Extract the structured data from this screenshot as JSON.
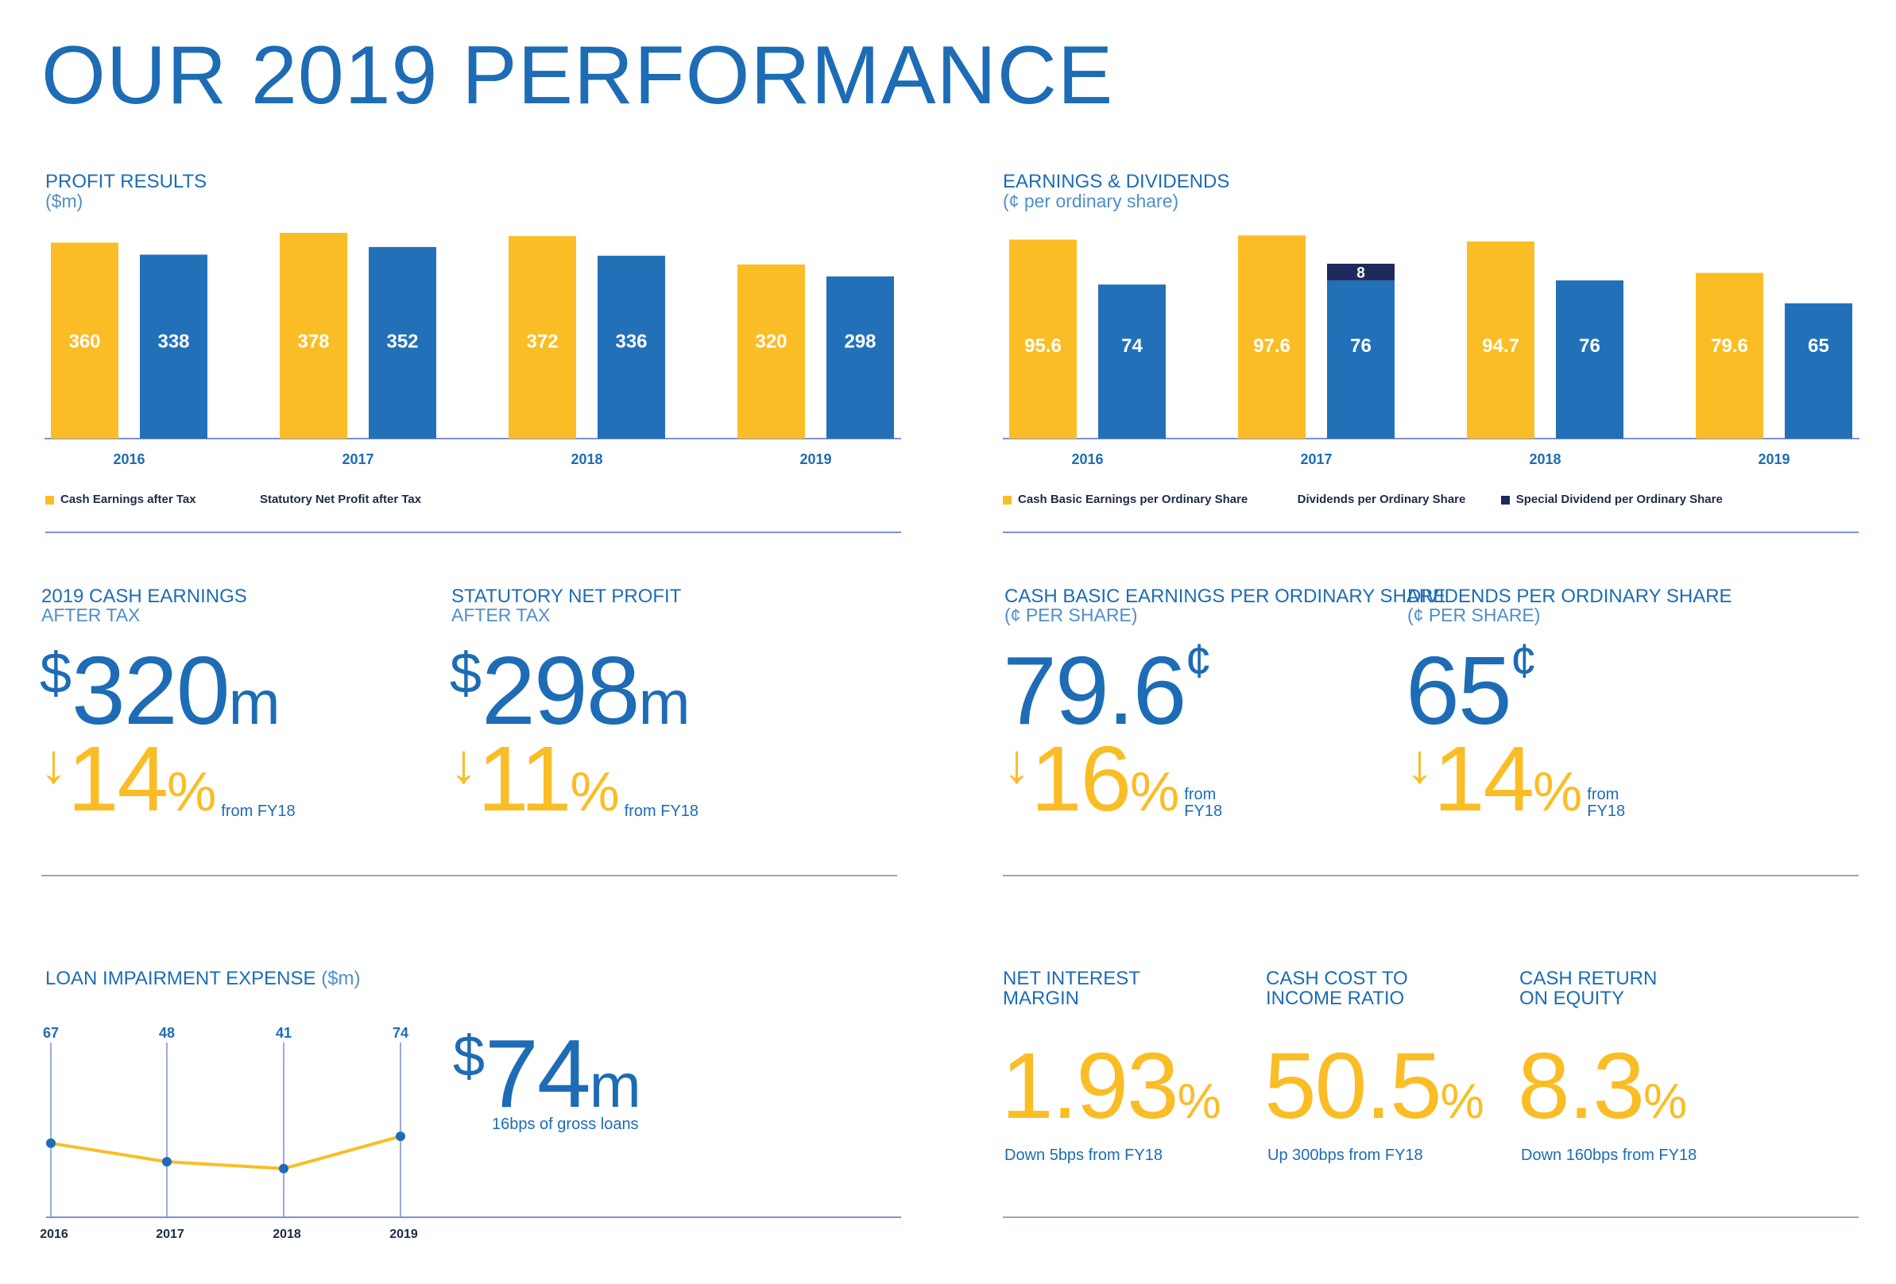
{
  "page": {
    "title": "OUR 2019 PERFORMANCE"
  },
  "colors": {
    "yellow": "#fbbd25",
    "blue": "#2271b8",
    "navy": "#1c2a5c",
    "text_blue": "#1d6cb5",
    "axis": "#7f8fd6"
  },
  "profit_results": {
    "title": "PROFIT RESULTS",
    "unit": "($m)",
    "legend": [
      "Cash Earnings after Tax",
      "Statutory Net Profit after Tax"
    ]
  },
  "earnings_dividends": {
    "title": "EARNINGS & DIVIDENDS",
    "unit": "(¢ per ordinary share)",
    "legend": [
      "Cash Basic Earnings per Ordinary Share",
      "Dividends per Ordinary Share",
      "Special Dividend per Ordinary Share"
    ]
  },
  "kpi": {
    "cash_earnings": {
      "title": "2019 CASH EARNINGS",
      "sub": "AFTER TAX",
      "currency": "$",
      "value": "320",
      "suffix": "m",
      "arrow": "↓",
      "change": "14",
      "pct": "%",
      "from": "from FY18"
    },
    "statutory": {
      "title": "STATUTORY NET PROFIT",
      "sub": "AFTER TAX",
      "currency": "$",
      "value": "298",
      "suffix": "m",
      "arrow": "↓",
      "change": "11",
      "pct": "%",
      "from": "from FY18"
    },
    "eps": {
      "title": "CASH BASIC EARNINGS PER ORDINARY SHARE",
      "sub": "(¢ PER SHARE)",
      "value": "79.6",
      "unit": "¢",
      "arrow": "↓",
      "change": "16",
      "pct": "%",
      "from_1": "from",
      "from_2": "FY18"
    },
    "dps": {
      "title": "DIVIDENDS PER ORDINARY SHARE",
      "sub": "(¢ PER SHARE)",
      "value": "65",
      "unit": "¢",
      "arrow": "↓",
      "change": "14",
      "pct": "%",
      "from_1": "from",
      "from_2": "FY18"
    }
  },
  "loan": {
    "title": "LOAN IMPAIRMENT EXPENSE",
    "unit": "($m)",
    "currency": "$",
    "value": "74",
    "suffix": "m",
    "note": "16bps of gross loans"
  },
  "ratios": [
    {
      "title_1": "NET INTEREST",
      "title_2": "MARGIN",
      "value": "1.93",
      "pct": "%",
      "note": "Down 5bps from FY18"
    },
    {
      "title_1": "CASH COST TO",
      "title_2": "INCOME RATIO",
      "value": "50.5",
      "pct": "%",
      "note": "Up 300bps from FY18"
    },
    {
      "title_1": "CASH RETURN",
      "title_2": "ON EQUITY",
      "value": "8.3",
      "pct": "%",
      "note": "Down 160bps from FY18"
    }
  ],
  "chart_data": [
    {
      "type": "bar",
      "title": "PROFIT RESULTS",
      "ylabel": "($m)",
      "categories": [
        "2016",
        "2017",
        "2018",
        "2019"
      ],
      "series": [
        {
          "name": "Cash Earnings after Tax",
          "color": "#fbbd25",
          "values": [
            360,
            378,
            372,
            320
          ]
        },
        {
          "name": "Statutory Net Profit after Tax",
          "color": "#2271b8",
          "values": [
            338,
            352,
            336,
            298
          ]
        }
      ],
      "ylim": [
        0,
        400
      ],
      "grid": false,
      "legend": "bottom-left"
    },
    {
      "type": "bar",
      "title": "EARNINGS & DIVIDENDS",
      "ylabel": "(¢ per ordinary share)",
      "categories": [
        "2016",
        "2017",
        "2018",
        "2019"
      ],
      "series": [
        {
          "name": "Cash Basic Earnings per Ordinary Share",
          "color": "#fbbd25",
          "values": [
            95.6,
            97.6,
            94.7,
            79.6
          ]
        },
        {
          "name": "Dividends per Ordinary Share",
          "color": "#2271b8",
          "values": [
            74,
            76,
            76,
            65
          ]
        },
        {
          "name": "Special Dividend per Ordinary Share",
          "color": "#1c2a5c",
          "values": [
            0,
            8,
            0,
            0
          ],
          "stacked_on": "Dividends per Ordinary Share"
        }
      ],
      "ylim": [
        0,
        100
      ],
      "grid": false,
      "legend": "bottom-left"
    },
    {
      "type": "line",
      "title": "LOAN IMPAIRMENT EXPENSE",
      "ylabel": "($m)",
      "x": [
        "2016",
        "2017",
        "2018",
        "2019"
      ],
      "series": [
        {
          "color": "#fbbd25",
          "values": [
            67,
            48,
            41,
            74
          ]
        }
      ],
      "ylim": [
        0,
        100
      ],
      "grid": false
    }
  ]
}
